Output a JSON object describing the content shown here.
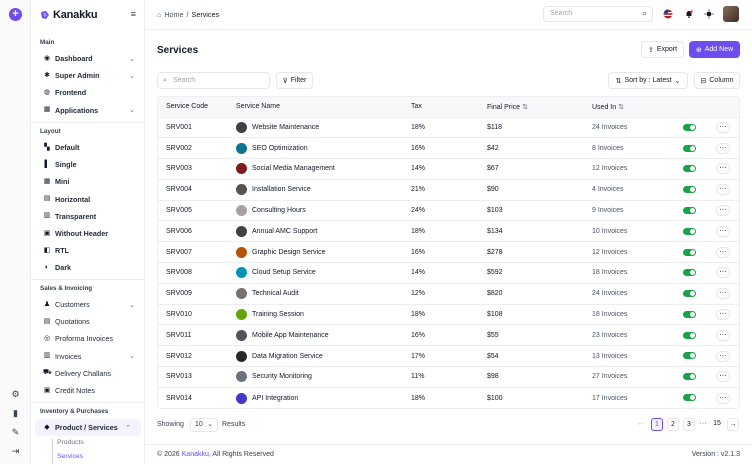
{
  "brand": {
    "name": "Kanakku"
  },
  "breadcrumb": {
    "home": "Home",
    "separator": "/",
    "current": "Services"
  },
  "header": {
    "search_placeholder": "Search"
  },
  "sidebar": {
    "sections": {
      "main": "Main",
      "layout": "Layout",
      "sales": "Sales & Invoicing",
      "inventory": "Inventory & Purchases"
    },
    "main_items": [
      {
        "label": "Dashboard",
        "icon": "dashboard-icon",
        "has_children": true
      },
      {
        "label": "Super Admin",
        "icon": "super-admin-icon",
        "has_children": true
      },
      {
        "label": "Frontend",
        "icon": "frontend-icon",
        "has_children": false
      },
      {
        "label": "Applications",
        "icon": "applications-icon",
        "has_children": true
      }
    ],
    "layout_items": [
      {
        "label": "Default"
      },
      {
        "label": "Single"
      },
      {
        "label": "Mini"
      },
      {
        "label": "Horizontal"
      },
      {
        "label": "Transparent"
      },
      {
        "label": "Without Header"
      },
      {
        "label": "RTL"
      },
      {
        "label": "Dark"
      }
    ],
    "sales_items": [
      {
        "label": "Customers",
        "has_children": true
      },
      {
        "label": "Quotations",
        "has_children": false
      },
      {
        "label": "Proforma Invoices",
        "has_children": false
      },
      {
        "label": "Invoices",
        "has_children": true
      },
      {
        "label": "Delivery Challans",
        "has_children": false
      },
      {
        "label": "Credit Notes",
        "has_children": false
      }
    ],
    "inventory_items": [
      {
        "label": "Product / Services",
        "expanded": true
      }
    ],
    "inventory_sub": [
      {
        "label": "Products",
        "current": false
      },
      {
        "label": "Services",
        "current": true
      }
    ]
  },
  "page": {
    "title": "Services",
    "export_label": "Export",
    "add_label": "Add New",
    "search_placeholder": "Search",
    "filter_label": "Filter",
    "sort_label": "Sort by : Latest",
    "column_label": "Column"
  },
  "table": {
    "columns": [
      "Service Code",
      "Service Name",
      "Tax",
      "Final Price",
      "Used In"
    ],
    "rows": [
      {
        "code": "SRV001",
        "name": "Website Maintenance",
        "tax": "18%",
        "price": "$118",
        "used": "24 Invoices",
        "thumb": "#3f3f46"
      },
      {
        "code": "SRV002",
        "name": "SEO Optimization",
        "tax": "16%",
        "price": "$42",
        "used": "8 Invoices",
        "thumb": "#0e7490"
      },
      {
        "code": "SRV003",
        "name": "Social Media Management",
        "tax": "14%",
        "price": "$67",
        "used": "12 Invoices",
        "thumb": "#7f1d1d"
      },
      {
        "code": "SRV004",
        "name": "Installation Service",
        "tax": "21%",
        "price": "$90",
        "used": "4 Invoices",
        "thumb": "#57534e"
      },
      {
        "code": "SRV005",
        "name": "Consulting Hours",
        "tax": "24%",
        "price": "$103",
        "used": "9 Invoices",
        "thumb": "#a8a29e"
      },
      {
        "code": "SRV006",
        "name": "Annual AMC Support",
        "tax": "18%",
        "price": "$134",
        "used": "10 Invoices",
        "thumb": "#44403c"
      },
      {
        "code": "SRV007",
        "name": "Graphic Design Service",
        "tax": "16%",
        "price": "$278",
        "used": "12 Invoices",
        "thumb": "#b45309"
      },
      {
        "code": "SRV008",
        "name": "Cloud Setup Service",
        "tax": "14%",
        "price": "$592",
        "used": "18 Invoices",
        "thumb": "#0891b2"
      },
      {
        "code": "SRV009",
        "name": "Technical Audit",
        "tax": "12%",
        "price": "$820",
        "used": "24 Invoices",
        "thumb": "#78716c"
      },
      {
        "code": "SRV010",
        "name": "Training Session",
        "tax": "18%",
        "price": "$108",
        "used": "18 Invoices",
        "thumb": "#65a30d"
      },
      {
        "code": "SRV011",
        "name": "Mobile App Maintenance",
        "tax": "16%",
        "price": "$55",
        "used": "23 Invoices",
        "thumb": "#52525b"
      },
      {
        "code": "SRV012",
        "name": "Data Migration Service",
        "tax": "17%",
        "price": "$54",
        "used": "13 Invoices",
        "thumb": "#27272a"
      },
      {
        "code": "SRV013",
        "name": "Security Monitoring",
        "tax": "11%",
        "price": "$98",
        "used": "27 Invoices",
        "thumb": "#6b7280"
      },
      {
        "code": "SRV014",
        "name": "API Integration",
        "tax": "18%",
        "price": "$100",
        "used": "17 Invoices",
        "thumb": "#4338ca"
      }
    ]
  },
  "pagination": {
    "showing_label": "Showing",
    "per_page": "10",
    "results_label": "Results",
    "pages": [
      "1",
      "2",
      "3"
    ],
    "ellipsis": "···",
    "last_page": "15",
    "current": "1"
  },
  "footer": {
    "copyright_prefix": "© 2026",
    "brand": "Kanakku",
    "copyright_suffix": ", All Rights Reserved",
    "version": "Version : v2.1.3"
  },
  "colors": {
    "accent": "#6d4df0",
    "toggle_on": "#16a34a"
  }
}
